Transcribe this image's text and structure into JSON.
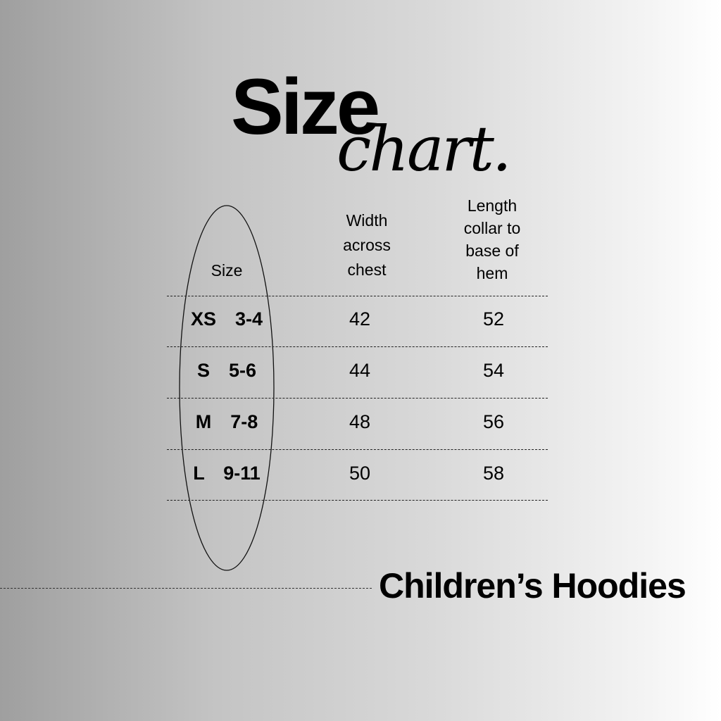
{
  "title": {
    "line1": "Size",
    "line2": "chart."
  },
  "columns": [
    {
      "label": "Size"
    },
    {
      "label": "Width across chest",
      "lines": [
        "Width",
        "across",
        "chest"
      ]
    },
    {
      "label": "Length collar to base of hem",
      "lines": [
        "Length",
        "collar to",
        "base of",
        "hem"
      ]
    }
  ],
  "rows": [
    {
      "size": "XS  3-4",
      "width": "42",
      "length": "52"
    },
    {
      "size": "S  5-6",
      "width": "44",
      "length": "54"
    },
    {
      "size": "M  7-8",
      "width": "48",
      "length": "56"
    },
    {
      "size": "L  9-11",
      "width": "50",
      "length": "58"
    }
  ],
  "footer": "Children’s Hoodies"
}
